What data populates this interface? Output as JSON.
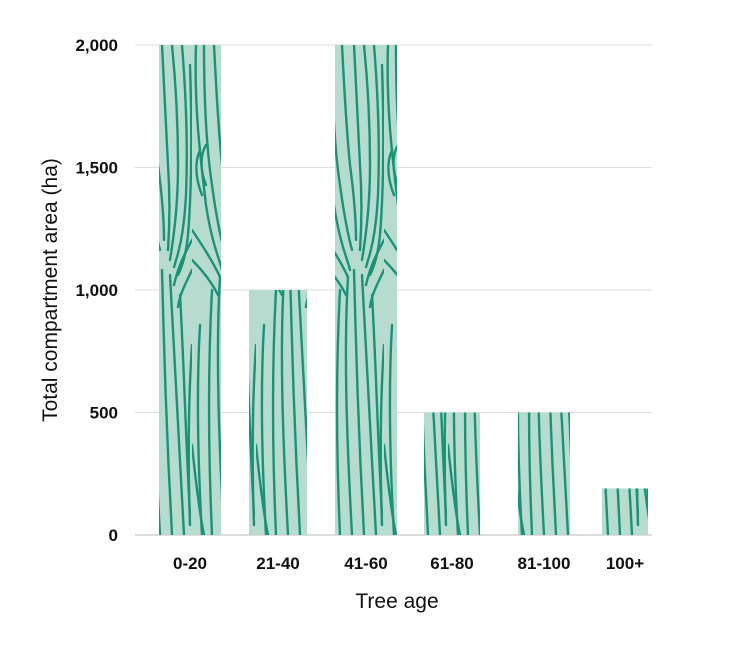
{
  "chart_data": {
    "type": "bar",
    "title": "",
    "xlabel": "Tree age",
    "ylabel": "Total compartment area (ha)",
    "categories": [
      "0-20",
      "21-40",
      "41-60",
      "61-80",
      "81-100",
      "100+"
    ],
    "values": [
      2000,
      1000,
      2000,
      500,
      500,
      190
    ],
    "ylim": [
      0,
      2000
    ],
    "yticks": [
      0,
      500,
      1000,
      1500,
      2000
    ],
    "ytick_labels": [
      "0",
      "500",
      "1,000",
      "1,500",
      "2,000"
    ],
    "grid": true,
    "legend": "none",
    "colors": {
      "bar_fill": "#b8dbd0",
      "wood_grain": "#1a9275",
      "grid": "#dddddd",
      "text": "#111111"
    }
  }
}
